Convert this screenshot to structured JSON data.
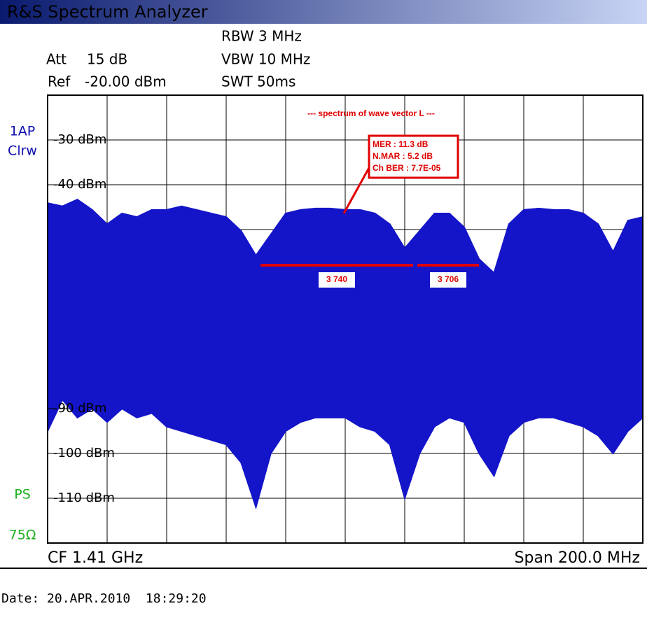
{
  "header": {
    "title": "R&S Spectrum Analyzer"
  },
  "settings": {
    "rbw": "RBW 3 MHz",
    "att": "Att",
    "att_value": "15 dB",
    "vbw": "VBW 10 MHz",
    "ref": "Ref",
    "ref_value": "-20.00 dBm",
    "swt": "SWT 50ms"
  },
  "side_labels": {
    "trace": "1AP",
    "mode": "Clrw",
    "ps": "PS",
    "impedance": "75Ω"
  },
  "chart_data": {
    "type": "band",
    "title": "--- spectrum of wave vector L ---",
    "color": "#1414c8",
    "x": [
      1310,
      1315,
      1320,
      1325,
      1330,
      1335,
      1340,
      1345,
      1350,
      1355,
      1360,
      1365,
      1370,
      1375,
      1380,
      1385,
      1390,
      1395,
      1400,
      1405,
      1410,
      1415,
      1420,
      1425,
      1430,
      1435,
      1440,
      1445,
      1450,
      1455,
      1460,
      1465,
      1470,
      1475,
      1480,
      1485,
      1490,
      1495,
      1500,
      1505,
      1510
    ],
    "upper": [
      -44.1,
      -44.8,
      -43.3,
      -45.6,
      -48.8,
      -46.4,
      -47.2,
      -45.6,
      -45.6,
      -44.8,
      -45.6,
      -46.4,
      -47.2,
      -50.3,
      -55.8,
      -51.1,
      -46.4,
      -45.6,
      -45.3,
      -45.3,
      -45.6,
      -45.6,
      -46.4,
      -48.8,
      -54.2,
      -50.3,
      -46.4,
      -46.4,
      -49.5,
      -56.6,
      -59.7,
      -48.8,
      -45.6,
      -45.3,
      -45.6,
      -45.6,
      -46.4,
      -48.8,
      -55,
      -48,
      -47.2
    ],
    "lower": [
      -95,
      -88,
      -92,
      -90,
      -93,
      -90,
      -92,
      -91,
      -94,
      -95,
      -96,
      -97,
      -98,
      -102,
      -112,
      -100,
      -95,
      -93,
      -92,
      -92,
      -92,
      -94,
      -95,
      -98,
      -110,
      -100,
      -94,
      -92,
      -93,
      -100,
      -105,
      -96,
      -93,
      -92,
      -92,
      -93,
      -94,
      -96,
      -100,
      -95,
      -92
    ],
    "xlim": [
      1310,
      1510
    ],
    "ylim": [
      -120,
      -20
    ],
    "yticks": [
      {
        "value": -30,
        "label": "-30 dBm"
      },
      {
        "value": -40,
        "label": "-40 dBm"
      },
      {
        "value": -90,
        "label": "-90 dBm"
      },
      {
        "value": -100,
        "label": "-100 dBm"
      },
      {
        "value": -110,
        "label": "-110 dBm"
      }
    ],
    "annotations": {
      "box": [
        "MER : 11.3 dB",
        "N.MAR : 5.2 dB",
        "Ch BER : 7.7E-05"
      ],
      "markers": [
        "3 740",
        "3 706"
      ]
    }
  },
  "footer": {
    "cf": "CF 1.41 GHz",
    "span": "Span 200.0 MHz",
    "date": "Date: 20.APR.2010  18:29:20"
  }
}
